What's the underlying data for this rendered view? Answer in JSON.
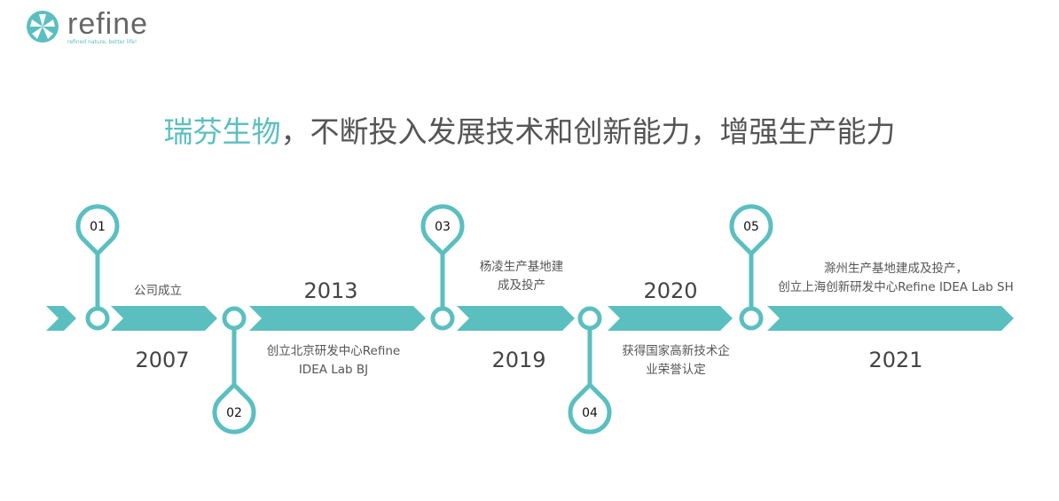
{
  "logo": {
    "word": "refine",
    "tagline": "refined nature, better life!"
  },
  "title": {
    "highlight": "瑞芬生物",
    "rest": "，不断投入发展技术和创新能力，增强生产能力"
  },
  "colors": {
    "accent": "#5bbfc0",
    "text": "#555555"
  },
  "milestones": [
    {
      "num": "01",
      "year": "2007",
      "desc": [
        "公司成立"
      ]
    },
    {
      "num": "02",
      "year": "2013",
      "desc": [
        "创立北京研发中心Refine",
        "IDEA Lab BJ"
      ]
    },
    {
      "num": "03",
      "year": "2019",
      "desc": [
        "杨凌生产基地建",
        "成及投产"
      ]
    },
    {
      "num": "04",
      "year": "2020",
      "desc": [
        "获得国家高新技术企",
        "业荣誉认定"
      ]
    },
    {
      "num": "05",
      "year": "2021",
      "desc": [
        "滁州生产基地建成及投产，",
        "创立上海创新研发中心Refine IDEA Lab SH"
      ]
    }
  ]
}
